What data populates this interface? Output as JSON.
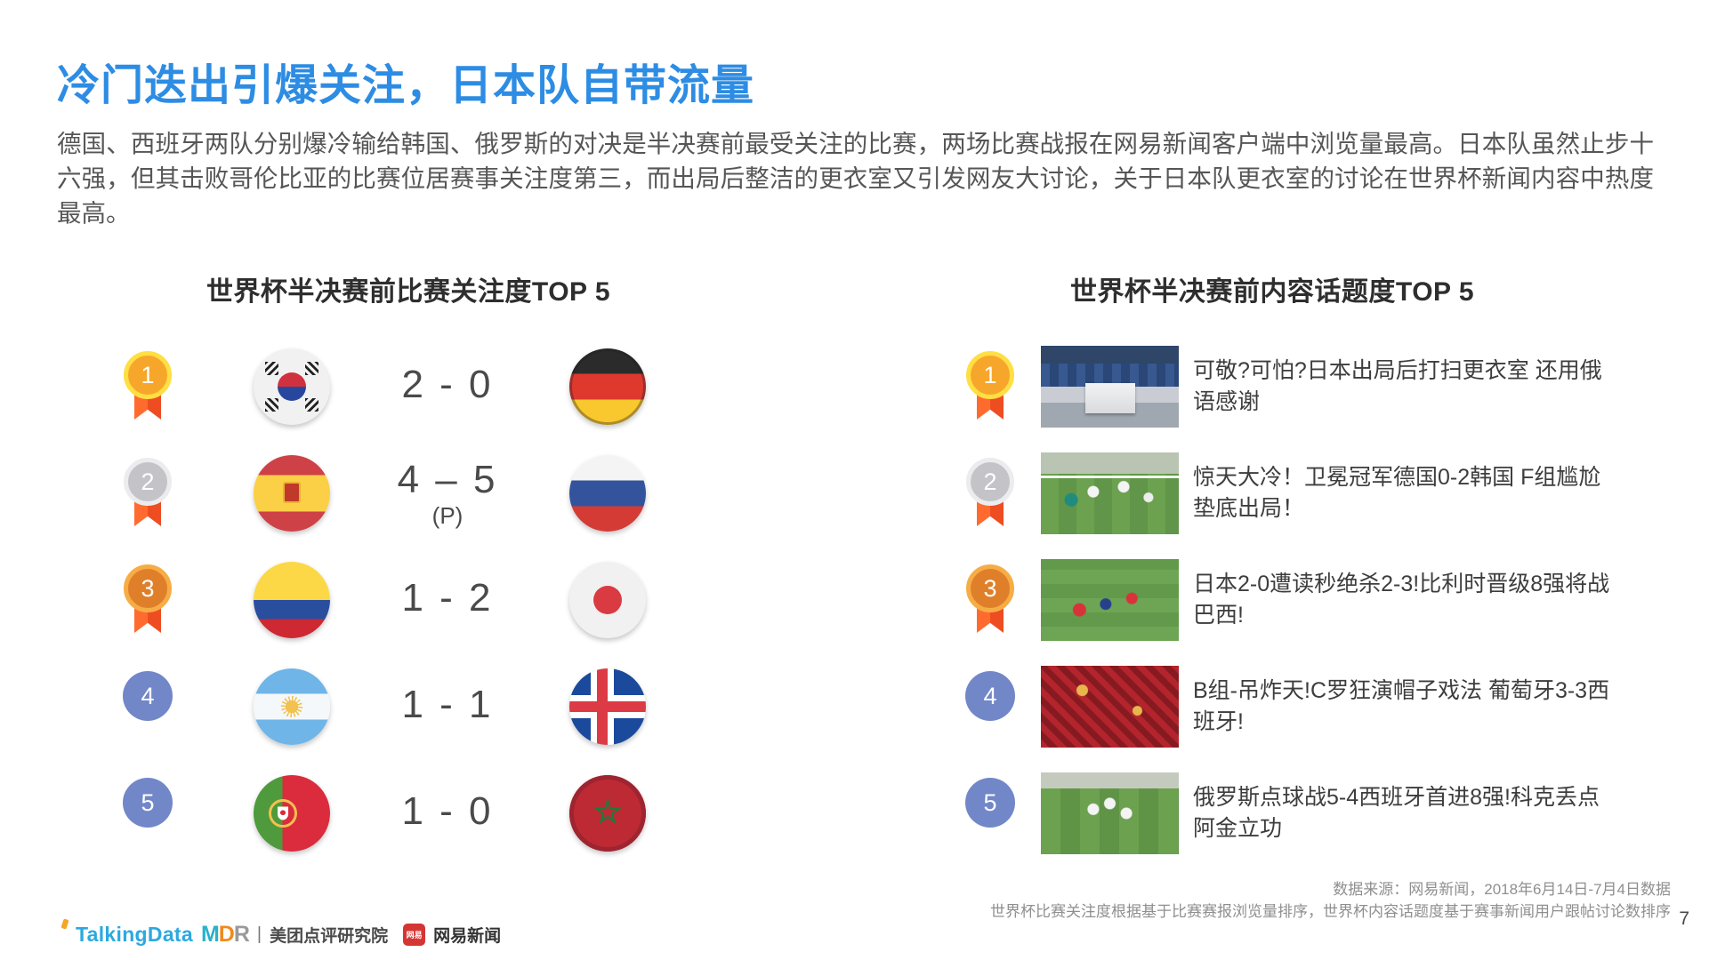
{
  "slide": {
    "title": "冷门迭出引爆关注，日本队自带流量",
    "body": "德国、西班牙两队分别爆冷输给韩国、俄罗斯的对决是半决赛前最受关注的比赛，两场比赛战报在网易新闻客户端中浏览量最高。日本队虽然止步十六强，但其击败哥伦比亚的比赛位居赛事关注度第三，而出局后整洁的更衣室又引发网友大讨论，关于日本队更衣室的讨论在世界杯新闻内容中热度最高。",
    "page_number": "7"
  },
  "colors": {
    "title_blue": "#2D8CE3",
    "rank_plain_blue": "#7287C8",
    "ribbon_orange": "#EE4D22",
    "medal_gold": "#F6A72B",
    "medal_silver": "#C4C4C8",
    "medal_bronze": "#E07F2A"
  },
  "left_panel": {
    "title": "世界杯半决赛前比赛关注度TOP 5",
    "rows": [
      {
        "rank": "1",
        "medal": "gold",
        "team_left": "south-korea",
        "score": "2 - 0",
        "note": "",
        "team_right": "germany"
      },
      {
        "rank": "2",
        "medal": "silver",
        "team_left": "spain",
        "score": "4 – 5",
        "note": "(P)",
        "team_right": "russia"
      },
      {
        "rank": "3",
        "medal": "bronze",
        "team_left": "colombia",
        "score": "1 - 2",
        "note": "",
        "team_right": "japan"
      },
      {
        "rank": "4",
        "medal": "plain",
        "team_left": "argentina",
        "score": "1 - 1",
        "note": "",
        "team_right": "iceland"
      },
      {
        "rank": "5",
        "medal": "plain",
        "team_left": "portugal",
        "score": "1 - 0",
        "note": "",
        "team_right": "morocco"
      }
    ]
  },
  "right_panel": {
    "title": "世界杯半决赛前内容话题度TOP 5",
    "rows": [
      {
        "rank": "1",
        "medal": "gold",
        "thumb": "locker-room",
        "headline": "可敬?可怕?日本出局后打扫更衣室 还用俄语感谢"
      },
      {
        "rank": "2",
        "medal": "silver",
        "thumb": "germany-korea-match",
        "headline": "惊天大冷！卫冕冠军德国0-2韩国 F组尴尬垫底出局！"
      },
      {
        "rank": "3",
        "medal": "bronze",
        "thumb": "japan-belgium-match",
        "headline": "日本2-0遭读秒绝杀2-3!比利时晋级8强将战巴西!"
      },
      {
        "rank": "4",
        "medal": "plain",
        "thumb": "portugal-fans",
        "headline": "B组-吊炸天!C罗狂演帽子戏法 葡萄牙3-3西班牙!"
      },
      {
        "rank": "5",
        "medal": "plain",
        "thumb": "russia-celebration",
        "headline": "俄罗斯点球战5-4西班牙首进8强!科克丢点阿金立功"
      }
    ]
  },
  "footer": {
    "source_line1": "数据来源：网易新闻，2018年6月14日-7月4日数据",
    "source_line2": "世界杯比赛关注度根据基于比赛赛报浏览量排序，世界杯内容话题度基于赛事新闻用户跟帖讨论数排序",
    "logos": {
      "talkingdata": "TalkingData",
      "mdr_m": "M",
      "mdr_d": "D",
      "mdr_r": "R",
      "divider": "|",
      "meituan": "美团点评研究院",
      "netease_badge": "网易",
      "netease": "网易新闻"
    }
  }
}
